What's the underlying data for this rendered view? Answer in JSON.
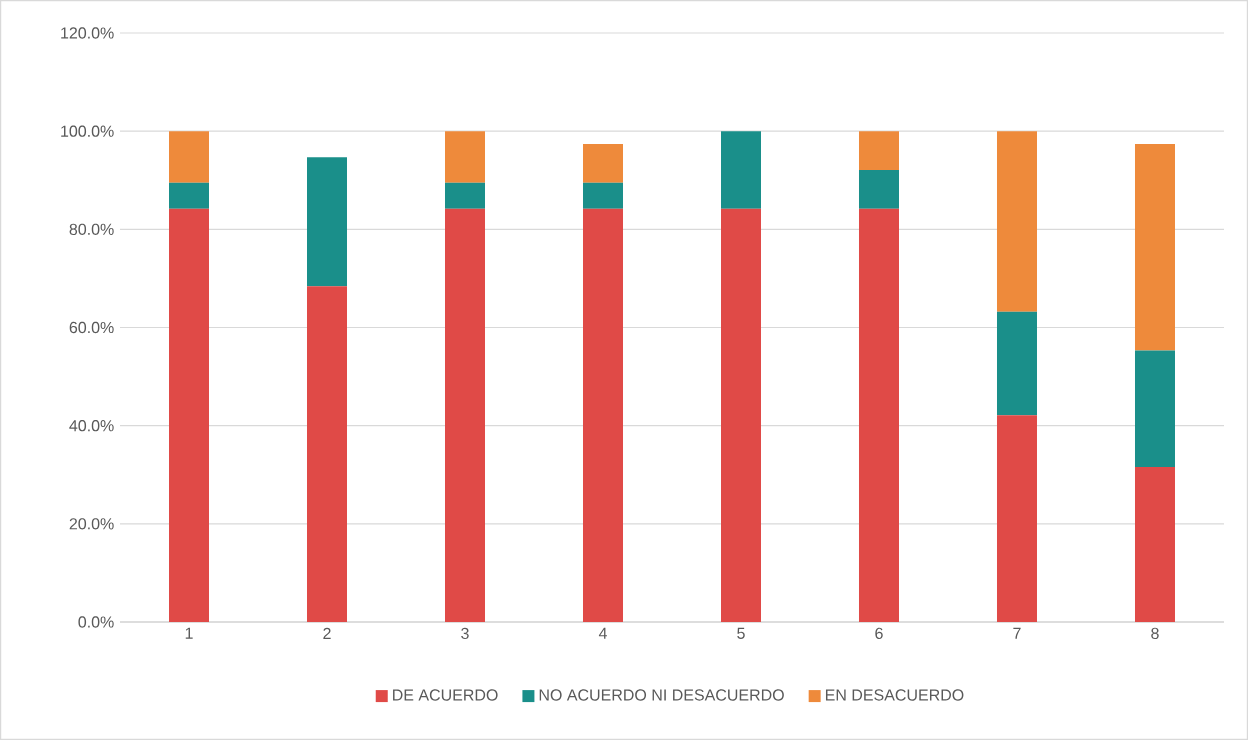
{
  "chart_data": {
    "type": "bar",
    "stacked": true,
    "categories": [
      "1",
      "2",
      "3",
      "4",
      "5",
      "6",
      "7",
      "8"
    ],
    "series": [
      {
        "name": "DE ACUERDO",
        "color": "#e04a47",
        "values": [
          84.2,
          68.4,
          84.2,
          84.2,
          84.2,
          84.2,
          42.1,
          31.6
        ]
      },
      {
        "name": "NO ACUERDO NI DESACUERDO",
        "color": "#1a8f8a",
        "values": [
          5.3,
          26.3,
          5.3,
          5.3,
          15.8,
          7.9,
          21.1,
          23.7
        ]
      },
      {
        "name": "EN DESACUERDO",
        "color": "#ee8a3b",
        "values": [
          10.5,
          0,
          10.5,
          7.9,
          0,
          7.9,
          36.8,
          42.1
        ]
      }
    ],
    "ylim": [
      0,
      120
    ],
    "yticks": [
      {
        "value": 0,
        "label": "0.0%"
      },
      {
        "value": 20,
        "label": "20.0%"
      },
      {
        "value": 40,
        "label": "40.0%"
      },
      {
        "value": 60,
        "label": "60.0%"
      },
      {
        "value": 80,
        "label": "80.0%"
      },
      {
        "value": 100,
        "label": "100.0%"
      },
      {
        "value": 120,
        "label": "120.0%"
      }
    ],
    "grid": "y",
    "legend": "bottom"
  }
}
